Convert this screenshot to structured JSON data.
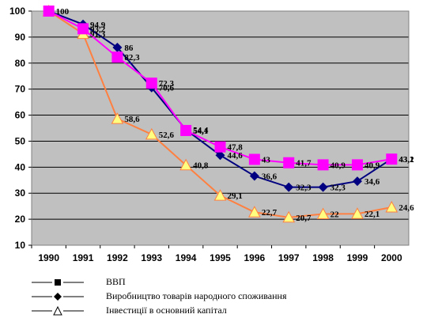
{
  "chart_data": {
    "type": "line",
    "title": "",
    "xlabel": "",
    "ylabel": "",
    "ylim": [
      10,
      100
    ],
    "y_ticks": [
      10,
      20,
      30,
      40,
      50,
      60,
      70,
      80,
      90,
      100
    ],
    "categories": [
      "1990",
      "1991",
      "1992",
      "1993",
      "1994",
      "1995",
      "1996",
      "1997",
      "1998",
      "1999",
      "2000"
    ],
    "grid": true,
    "background_color": "#c0c0c0",
    "legend_position": "bottom",
    "series": [
      {
        "values": [
          100,
          94.9,
          86,
          70.6,
          54.4,
          44.6,
          36.6,
          32.3,
          32.3,
          34.6,
          43.2
        ],
        "value_labels": [
          "100",
          "94,9",
          "86",
          "70,6",
          "54,4",
          "44,6",
          "36,6",
          "32,3",
          "32,3",
          "34,6",
          "43,2"
        ],
        "color": "#000080",
        "marker": "diamond"
      },
      {
        "values": [
          100,
          93.2,
          82.3,
          72.3,
          54.1,
          47.8,
          43,
          41.7,
          40.9,
          40.9,
          43.1
        ],
        "value_labels": [
          "",
          "93,2",
          "82,3",
          "72,3",
          "54,1",
          "47,8",
          "43",
          "41,7",
          "40,9",
          "40,9",
          "43,1"
        ],
        "color": "#ff00ff",
        "marker": "square"
      },
      {
        "values": [
          100,
          91.3,
          58.6,
          52.6,
          40.8,
          29.1,
          22.7,
          20.7,
          22,
          22.1,
          24.6
        ],
        "value_labels": [
          "",
          "91,3",
          "58,6",
          "52,6",
          "40,8",
          "29,1",
          "22,7",
          "20,7",
          "22",
          "22,1",
          "24,6"
        ],
        "color": "#ff8040",
        "marker": "triangle"
      }
    ],
    "legend": [
      {
        "label": "ВВП",
        "marker": "square"
      },
      {
        "label": "Виробництво товарів народного споживання",
        "marker": "diamond"
      },
      {
        "label": "Інвестиції в основний капітал",
        "marker": "triangle"
      }
    ]
  }
}
